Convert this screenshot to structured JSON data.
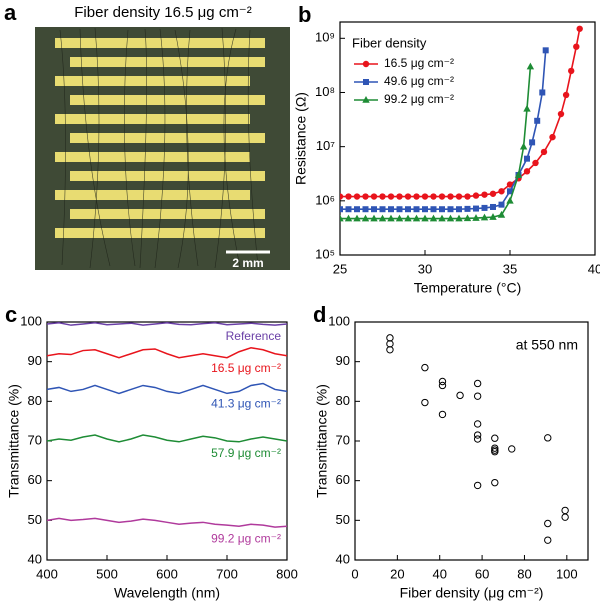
{
  "panel_a": {
    "label": "a",
    "title": "Fiber density 16.5 μg cm⁻²",
    "scale_bar": "2 mm"
  },
  "chart_data": [
    {
      "type": "line",
      "panel_label": "b",
      "x_label": "Temperature (°C)",
      "y_label": "Resistance (Ω)",
      "log_y": true,
      "markers": true,
      "legend": "upper left",
      "legend_title": "Fiber density",
      "xlim": [
        25,
        40
      ],
      "xticks": [
        25,
        30,
        35,
        40
      ],
      "ylim": [
        100000,
        2000000000
      ],
      "yticks": [
        {
          "value": 100000,
          "label": "10⁵"
        },
        {
          "value": 1000000,
          "label": "10⁶"
        },
        {
          "value": 10000000,
          "label": "10⁷"
        },
        {
          "value": 100000000,
          "label": "10⁸"
        },
        {
          "value": 1000000000,
          "label": "10⁹"
        }
      ],
      "series": [
        {
          "name": "16.5 μg cm⁻²",
          "color": "#e8141c",
          "marker": "circle",
          "x": [
            25,
            25.5,
            26,
            26.5,
            27,
            27.5,
            28,
            28.5,
            29,
            29.5,
            30,
            30.5,
            31,
            31.5,
            32,
            32.5,
            33,
            33.5,
            34,
            34.5,
            35,
            35.5,
            36,
            36.5,
            37,
            37.5,
            38,
            38.3,
            38.6,
            38.9,
            39.1
          ],
          "values": [
            1200000,
            1200000,
            1200000,
            1200000,
            1200000,
            1200000,
            1200000,
            1200000,
            1200000,
            1200000,
            1200000,
            1200000,
            1200000,
            1200000,
            1200000,
            1200000,
            1250000,
            1300000,
            1350000,
            1500000,
            2000000,
            2600000,
            3500000,
            5000000,
            8000000,
            15000000,
            40000000,
            90000000,
            250000000,
            700000000,
            1500000000
          ]
        },
        {
          "name": "49.6 μg cm⁻²",
          "color": "#2f55b5",
          "marker": "square",
          "x": [
            25,
            25.5,
            26,
            26.5,
            27,
            27.5,
            28,
            28.5,
            29,
            29.5,
            30,
            30.5,
            31,
            31.5,
            32,
            32.5,
            33,
            33.5,
            34,
            34.5,
            35,
            35.5,
            36,
            36.3,
            36.6,
            36.9,
            37.1
          ],
          "values": [
            700000,
            700000,
            700000,
            700000,
            700000,
            700000,
            700000,
            700000,
            700000,
            700000,
            700000,
            700000,
            700000,
            700000,
            700000,
            710000,
            720000,
            740000,
            770000,
            850000,
            1500000,
            3000000,
            6000000,
            12000000,
            30000000,
            100000000,
            600000000
          ]
        },
        {
          "name": "99.2 μg cm⁻²",
          "color": "#1e8c35",
          "marker": "triangle",
          "x": [
            25,
            25.5,
            26,
            26.5,
            27,
            27.5,
            28,
            28.5,
            29,
            29.5,
            30,
            30.5,
            31,
            31.5,
            32,
            32.5,
            33,
            33.5,
            34,
            34.5,
            35,
            35.5,
            35.8,
            36,
            36.2
          ],
          "values": [
            470000,
            470000,
            470000,
            470000,
            470000,
            470000,
            470000,
            470000,
            470000,
            470000,
            470000,
            470000,
            470000,
            470000,
            470000,
            475000,
            480000,
            490000,
            500000,
            550000,
            1000000,
            3000000,
            10000000,
            50000000,
            300000000
          ]
        }
      ]
    },
    {
      "type": "line",
      "panel_label": "c",
      "x_label": "Wavelength (nm)",
      "y_label": "Transmittance (%)",
      "markers": false,
      "legend": "inline",
      "xlim": [
        400,
        800
      ],
      "xticks": [
        400,
        500,
        600,
        700,
        800
      ],
      "ylim": [
        40,
        100
      ],
      "yticks": [
        40,
        50,
        60,
        70,
        80,
        90,
        100
      ],
      "x": [
        400,
        420,
        440,
        460,
        480,
        500,
        520,
        540,
        560,
        580,
        600,
        620,
        640,
        660,
        680,
        700,
        720,
        740,
        760,
        780,
        800
      ],
      "series": [
        {
          "name": "Reference",
          "color": "#6a3fa6",
          "values": [
            99.5,
            99.8,
            99.2,
            99.5,
            99.8,
            99.3,
            99.5,
            99.7,
            99.2,
            99.5,
            99.8,
            99.4,
            99.3,
            99.6,
            99.8,
            99.3,
            99.5,
            99.7,
            99.4,
            99.2,
            99.5
          ]
        },
        {
          "name": "16.5 μg cm⁻²",
          "color": "#e8141c",
          "values": [
            91.5,
            92,
            91.8,
            92.8,
            93,
            92,
            91,
            92,
            93,
            93.2,
            92,
            91,
            91.5,
            92,
            91.5,
            91,
            92.5,
            93.5,
            93,
            92,
            91.5
          ]
        },
        {
          "name": "41.3 μg cm⁻²",
          "color": "#2f55b5",
          "values": [
            83,
            83.5,
            82.5,
            83,
            84,
            83,
            82,
            83,
            84,
            83.5,
            82.5,
            82,
            83,
            84,
            83,
            82,
            82.5,
            84,
            84.5,
            83,
            82.5
          ]
        },
        {
          "name": "57.9 μg cm⁻²",
          "color": "#1e8c35",
          "values": [
            70,
            70.5,
            70.2,
            71,
            71.5,
            70.5,
            69.8,
            70.5,
            71.5,
            71,
            70.2,
            69.8,
            70.5,
            71.2,
            70.8,
            70,
            69.8,
            70.5,
            71,
            70.5,
            70
          ]
        },
        {
          "name": "99.2 μg cm⁻²",
          "color": "#b03a9c",
          "values": [
            50,
            50.5,
            50,
            50.2,
            50.5,
            50,
            49.5,
            49.8,
            50.3,
            50,
            49.5,
            49,
            49.3,
            49.5,
            49,
            48.8,
            48.5,
            49,
            48.8,
            48.3,
            48.5
          ]
        }
      ]
    },
    {
      "type": "scatter",
      "panel_label": "d",
      "x_label": "Fiber density (μg cm⁻²)",
      "y_label": "Transmittance (%)",
      "annotation": "at 550 nm",
      "color": "#000000",
      "xlim": [
        0,
        110
      ],
      "xticks": [
        0,
        20,
        40,
        60,
        80,
        100
      ],
      "ylim": [
        40,
        100
      ],
      "yticks": [
        40,
        50,
        60,
        70,
        80,
        90,
        100
      ],
      "x": [
        16.5,
        16.5,
        16.5,
        33,
        33,
        41.3,
        41.3,
        41.3,
        49.6,
        57.9,
        57.9,
        57.9,
        57.9,
        57.9,
        57.9,
        66,
        66,
        66,
        66,
        66,
        74,
        91,
        91,
        91,
        99.2,
        99.2
      ],
      "values": [
        96,
        94.5,
        93,
        88.5,
        79.7,
        85,
        84,
        76.7,
        81.5,
        84.5,
        81.3,
        74.3,
        71.5,
        70.5,
        58.8,
        70.7,
        68.2,
        67.7,
        67.3,
        59.5,
        68,
        70.8,
        49.2,
        45,
        52.5,
        50.8
      ]
    }
  ]
}
